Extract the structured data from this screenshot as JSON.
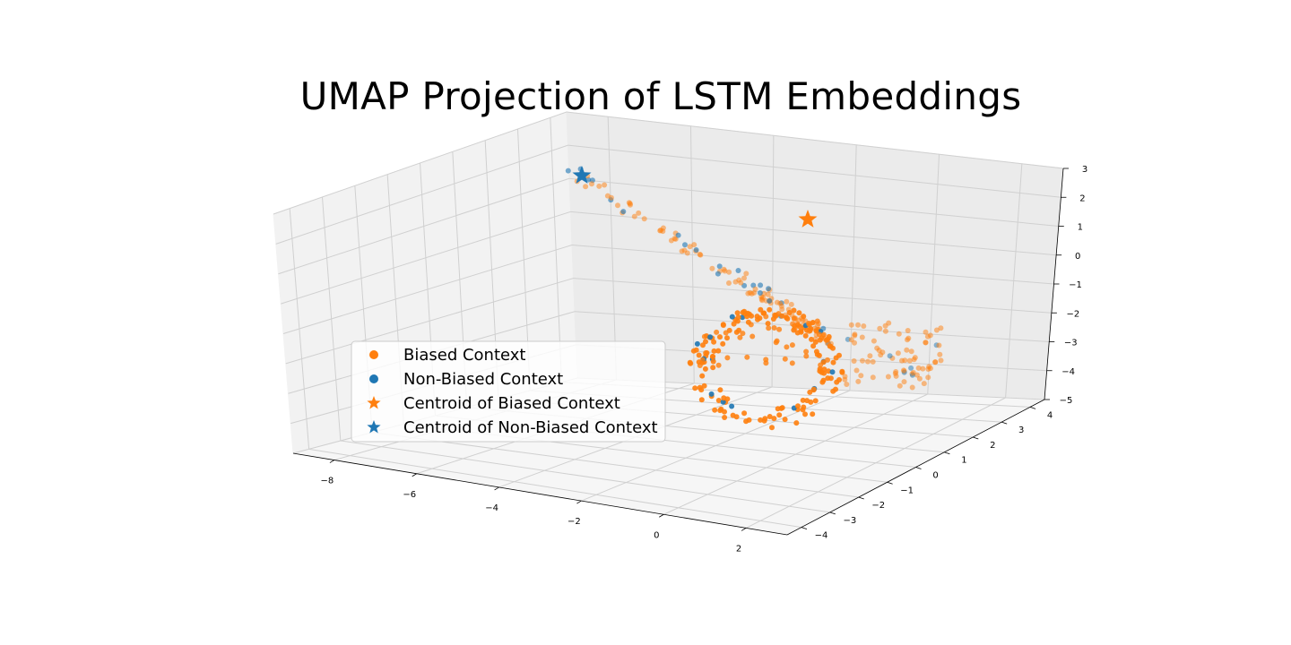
{
  "chart_data": {
    "type": "scatter",
    "title": "UMAP Projection of LSTM Embeddings",
    "projection": "3d",
    "grid": true,
    "legend_placement": "lower-left",
    "axes": {
      "x": {
        "ticks": [
          "−8",
          "−6",
          "−4",
          "−2",
          "0",
          "2"
        ],
        "range": [
          -9,
          3
        ]
      },
      "y": {
        "ticks": [
          "−4",
          "−3",
          "−2",
          "−1",
          "0",
          "1",
          "2",
          "3",
          "4"
        ],
        "range": [
          -4.5,
          4.5
        ]
      },
      "z": {
        "ticks": [
          "−5",
          "−4",
          "−3",
          "−2",
          "−1",
          "0",
          "1",
          "2",
          "3"
        ],
        "range": [
          -5,
          3
        ]
      }
    },
    "series": [
      {
        "name": "Biased Context",
        "marker": "circle",
        "color": "#ff7f0e"
      },
      {
        "name": "Non-Biased Context",
        "marker": "circle",
        "color": "#1f77b4"
      },
      {
        "name": "Centroid of Biased Context",
        "marker": "star",
        "color": "#ff7f0e"
      },
      {
        "name": "Centroid of Non-Biased Context",
        "marker": "star",
        "color": "#1f77b4"
      }
    ],
    "colors": {
      "biased": "#ff7f0e",
      "non_biased": "#1f77b4"
    }
  }
}
